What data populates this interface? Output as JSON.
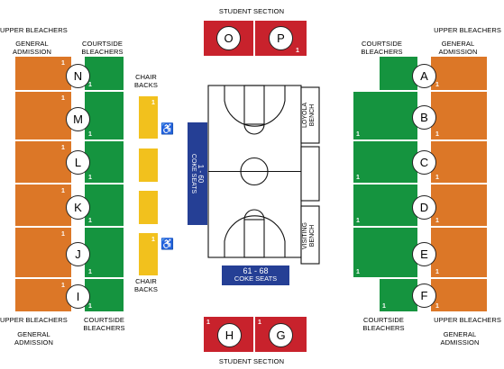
{
  "top": {
    "title": "STUDENT SECTION",
    "sections": [
      "O",
      "P"
    ],
    "row_mark": "1"
  },
  "bottom": {
    "title": "STUDENT SECTION",
    "sections": [
      "H",
      "G"
    ],
    "row_mark": "1"
  },
  "left": {
    "labels": {
      "upper_top": "UPPER BLEACHERS",
      "ga_top": [
        "GENERAL",
        "ADMISSION"
      ],
      "courtside_top": [
        "COURTSIDE",
        "BLEACHERS"
      ],
      "chair_top": [
        "CHAIR",
        "BACKS"
      ],
      "chair_bottom": [
        "CHAIR",
        "BACKS"
      ],
      "upper_bottom": "UPPER BLEACHERS",
      "ga_bottom": [
        "GENERAL",
        "ADMISSION"
      ],
      "courtside_bottom": [
        "COURTSIDE",
        "BLEACHERS"
      ]
    },
    "sections": [
      "N",
      "M",
      "L",
      "K",
      "J",
      "I"
    ],
    "row_mark": "1"
  },
  "right": {
    "labels": {
      "upper_top": "UPPER BLEACHERS",
      "ga_top": [
        "GENERAL",
        "ADMISSION"
      ],
      "courtside_top": [
        "COURTSIDE",
        "BLEACHERS"
      ],
      "upper_bottom": "UPPER BLEACHERS",
      "ga_bottom": [
        "GENERAL",
        "ADMISSION"
      ],
      "courtside_bottom": [
        "COURTSIDE",
        "BLEACHERS"
      ]
    },
    "sections": [
      "A",
      "B",
      "C",
      "D",
      "E",
      "F"
    ],
    "row_mark": "1"
  },
  "court": {
    "coke_side": {
      "range": "1 - 60",
      "name": "COKE SEATS"
    },
    "coke_bottom": {
      "range": "61 - 68",
      "name": "COKE SEATS"
    },
    "home_bench": [
      "LOYOLA",
      "BENCH"
    ],
    "visiting_bench": [
      "VISITING",
      "BENCH"
    ]
  },
  "icons": [
    "wheelchair-icon",
    "wheelchair-icon"
  ],
  "colors": {
    "general_admission": "#dc7727",
    "courtside": "#15943f",
    "student": "#c8222c",
    "chair_backs": "#f2c11d",
    "coke_seats": "#253f95"
  }
}
